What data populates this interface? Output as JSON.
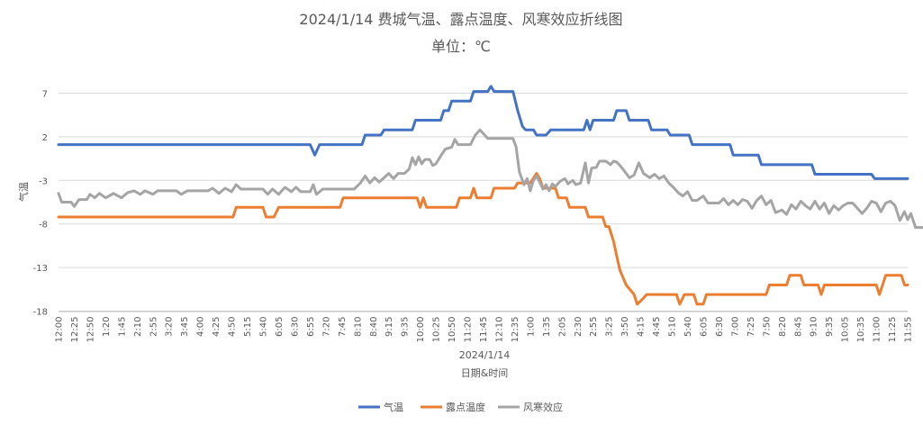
{
  "chart_data": {
    "type": "line",
    "title": "2024/1/14 费城气温、露点温度、风寒效应折线图",
    "subtitle": "单位：℃",
    "xlabel": "日期&时间",
    "ylabel": "气温",
    "date_label": "2024/1/14",
    "ylim": [
      -18,
      7
    ],
    "yticks": [
      -18,
      -13,
      -8,
      -3,
      2,
      7
    ],
    "x_ticks": [
      "12:00",
      "12:25",
      "12:50",
      "1:20",
      "1:45",
      "2:10",
      "2:55",
      "3:20",
      "3:45",
      "4:00",
      "4:25",
      "4:50",
      "5:15",
      "5:40",
      "6:05",
      "6:30",
      "6:55",
      "7:20",
      "7:45",
      "8:10",
      "8:40",
      "9:15",
      "9:35",
      "10:00",
      "10:25",
      "10:50",
      "11:20",
      "11:45",
      "12:10",
      "12:35",
      "1:00",
      "1:35",
      "2:05",
      "2:30",
      "2:55",
      "3:25",
      "3:50",
      "4:15",
      "4:45",
      "5:10",
      "5:40",
      "6:05",
      "6:30",
      "7:00",
      "7:25",
      "7:50",
      "8:20",
      "8:45",
      "9:10",
      "9:35",
      "10:05",
      "10:35",
      "11:00",
      "11:25",
      "11:55"
    ],
    "legend_position": "bottom",
    "grid": true,
    "series": [
      {
        "name": "气温",
        "color": "#4472C4",
        "points": [
          [
            0,
            1.1
          ],
          [
            16,
            1.1
          ],
          [
            16.3,
            -0.1
          ],
          [
            16.6,
            1.1
          ],
          [
            19.3,
            1.1
          ],
          [
            19.5,
            2.2
          ],
          [
            20.5,
            2.2
          ],
          [
            20.7,
            2.8
          ],
          [
            22.5,
            2.8
          ],
          [
            22.7,
            3.9
          ],
          [
            24.3,
            3.9
          ],
          [
            24.5,
            5
          ],
          [
            24.8,
            5
          ],
          [
            25,
            6.1
          ],
          [
            26.2,
            6.1
          ],
          [
            26.4,
            7.2
          ],
          [
            27.3,
            7.2
          ],
          [
            27.5,
            7.8
          ],
          [
            27.7,
            7.2
          ],
          [
            28.9,
            7.2
          ],
          [
            29.2,
            5
          ],
          [
            29.5,
            3.2
          ],
          [
            29.7,
            2.8
          ],
          [
            30.2,
            2.8
          ],
          [
            30.4,
            2.2
          ],
          [
            31,
            2.2
          ],
          [
            31.3,
            2.8
          ],
          [
            33.4,
            2.8
          ],
          [
            33.6,
            3.9
          ],
          [
            33.8,
            2.8
          ],
          [
            34,
            3.9
          ],
          [
            35.3,
            3.9
          ],
          [
            35.5,
            5
          ],
          [
            36.1,
            5
          ],
          [
            36.3,
            3.9
          ],
          [
            37.5,
            3.9
          ],
          [
            37.7,
            2.8
          ],
          [
            38.7,
            2.8
          ],
          [
            38.9,
            2.2
          ],
          [
            40.1,
            2.2
          ],
          [
            40.3,
            1.1
          ],
          [
            42.7,
            1.1
          ],
          [
            42.9,
            -0.1
          ],
          [
            44.5,
            -0.1
          ],
          [
            44.7,
            -1.2
          ],
          [
            47.9,
            -1.2
          ],
          [
            48.1,
            -2.3
          ],
          [
            51.7,
            -2.3
          ],
          [
            51.9,
            -2.8
          ],
          [
            54,
            -2.8
          ]
        ]
      },
      {
        "name": "露点温度",
        "color": "#ED7D31",
        "points": [
          [
            0,
            -7.2
          ],
          [
            11.1,
            -7.2
          ],
          [
            11.3,
            -6.1
          ],
          [
            13,
            -6.1
          ],
          [
            13.2,
            -7.2
          ],
          [
            13.7,
            -7.2
          ],
          [
            14,
            -6.1
          ],
          [
            17.9,
            -6.1
          ],
          [
            18.1,
            -5
          ],
          [
            22.8,
            -5
          ],
          [
            23,
            -6.1
          ],
          [
            23.2,
            -5
          ],
          [
            23.4,
            -6.1
          ],
          [
            25.3,
            -6.1
          ],
          [
            25.5,
            -5
          ],
          [
            26.2,
            -5
          ],
          [
            26.4,
            -3.9
          ],
          [
            26.6,
            -5
          ],
          [
            27.5,
            -5
          ],
          [
            27.7,
            -3.9
          ],
          [
            29,
            -3.9
          ],
          [
            29.2,
            -3.3
          ],
          [
            30,
            -3.3
          ],
          [
            30.4,
            -2.2
          ],
          [
            30.6,
            -2.8
          ],
          [
            30.8,
            -3.9
          ],
          [
            31.6,
            -3.9
          ],
          [
            31.8,
            -5
          ],
          [
            32.3,
            -5
          ],
          [
            32.5,
            -6.1
          ],
          [
            33.5,
            -6.1
          ],
          [
            33.7,
            -7.2
          ],
          [
            34.6,
            -7.2
          ],
          [
            34.8,
            -8.3
          ],
          [
            35,
            -8.3
          ],
          [
            35.3,
            -10
          ],
          [
            35.5,
            -11.7
          ],
          [
            35.7,
            -13.3
          ],
          [
            36.1,
            -15
          ],
          [
            36.6,
            -16.1
          ],
          [
            36.8,
            -17.2
          ],
          [
            37.1,
            -16.7
          ],
          [
            37.4,
            -16.1
          ],
          [
            39.3,
            -16.1
          ],
          [
            39.5,
            -17.2
          ],
          [
            39.8,
            -16.1
          ],
          [
            40.4,
            -16.1
          ],
          [
            40.6,
            -17.2
          ],
          [
            41,
            -17.2
          ],
          [
            41.2,
            -16.1
          ],
          [
            45,
            -16.1
          ],
          [
            45.2,
            -15
          ],
          [
            46.3,
            -15
          ],
          [
            46.5,
            -13.9
          ],
          [
            47.2,
            -13.9
          ],
          [
            47.4,
            -15
          ],
          [
            48.3,
            -15
          ],
          [
            48.5,
            -16.1
          ],
          [
            48.7,
            -15
          ],
          [
            52,
            -15
          ],
          [
            52.2,
            -16.1
          ],
          [
            52.4,
            -15
          ],
          [
            52.6,
            -13.9
          ],
          [
            53.6,
            -13.9
          ],
          [
            53.8,
            -15
          ],
          [
            54,
            -15
          ]
        ]
      },
      {
        "name": "风寒效应",
        "color": "#A5A5A5",
        "points": [
          [
            0,
            -4.5
          ],
          [
            0.2,
            -5.5
          ],
          [
            0.8,
            -5.5
          ],
          [
            1,
            -6
          ],
          [
            1.3,
            -5.2
          ],
          [
            1.8,
            -5.2
          ],
          [
            2,
            -4.6
          ],
          [
            2.3,
            -5
          ],
          [
            2.6,
            -4.5
          ],
          [
            3,
            -5
          ],
          [
            3.5,
            -4.5
          ],
          [
            4,
            -5
          ],
          [
            4.4,
            -4.4
          ],
          [
            4.8,
            -4.2
          ],
          [
            5.2,
            -4.6
          ],
          [
            5.5,
            -4.2
          ],
          [
            6,
            -4.6
          ],
          [
            6.3,
            -4.2
          ],
          [
            7.5,
            -4.2
          ],
          [
            7.8,
            -4.6
          ],
          [
            8.2,
            -4.2
          ],
          [
            9.5,
            -4.2
          ],
          [
            9.8,
            -3.9
          ],
          [
            10.2,
            -4.5
          ],
          [
            10.6,
            -3.9
          ],
          [
            11,
            -4.3
          ],
          [
            11.3,
            -3.5
          ],
          [
            11.6,
            -4
          ],
          [
            13,
            -4
          ],
          [
            13.3,
            -4.6
          ],
          [
            13.6,
            -4
          ],
          [
            14,
            -4.6
          ],
          [
            14.4,
            -3.8
          ],
          [
            14.8,
            -4.3
          ],
          [
            15.1,
            -3.8
          ],
          [
            15.4,
            -4.3
          ],
          [
            16,
            -4.3
          ],
          [
            16.2,
            -3.5
          ],
          [
            16.4,
            -4.6
          ],
          [
            16.8,
            -4
          ],
          [
            18.8,
            -4
          ],
          [
            19.2,
            -3.3
          ],
          [
            19.5,
            -2.5
          ],
          [
            19.8,
            -3.3
          ],
          [
            20.1,
            -2.7
          ],
          [
            20.4,
            -3.2
          ],
          [
            20.7,
            -2.7
          ],
          [
            21,
            -2.2
          ],
          [
            21.3,
            -2.8
          ],
          [
            21.6,
            -2.2
          ],
          [
            22,
            -2.2
          ],
          [
            22.3,
            -1.7
          ],
          [
            22.5,
            -0.4
          ],
          [
            22.7,
            -1.2
          ],
          [
            22.9,
            -0.3
          ],
          [
            23.1,
            -1.1
          ],
          [
            23.3,
            -0.6
          ],
          [
            23.6,
            -0.6
          ],
          [
            23.8,
            -1.3
          ],
          [
            24,
            -1.1
          ],
          [
            24.3,
            -0.2
          ],
          [
            24.6,
            0.6
          ],
          [
            25,
            0.8
          ],
          [
            25.2,
            1.7
          ],
          [
            25.4,
            1.1
          ],
          [
            26.2,
            1.1
          ],
          [
            26.5,
            2.2
          ],
          [
            26.8,
            2.8
          ],
          [
            27.1,
            2.2
          ],
          [
            27.3,
            1.8
          ],
          [
            27.5,
            1.8
          ],
          [
            27.8,
            1.8
          ],
          [
            28.4,
            1.8
          ],
          [
            28.6,
            1.8
          ],
          [
            28.9,
            1.8
          ],
          [
            29.1,
            0.8
          ],
          [
            29.3,
            -2
          ],
          [
            29.6,
            -3.5
          ],
          [
            29.8,
            -2.8
          ],
          [
            30,
            -4.2
          ],
          [
            30.2,
            -3
          ],
          [
            30.4,
            -2.5
          ],
          [
            30.6,
            -3.2
          ],
          [
            30.8,
            -4
          ],
          [
            31,
            -3.5
          ],
          [
            31.2,
            -4.2
          ],
          [
            31.4,
            -3.4
          ],
          [
            31.6,
            -3.7
          ],
          [
            31.9,
            -3.1
          ],
          [
            32.2,
            -2.8
          ],
          [
            32.4,
            -3.4
          ],
          [
            32.7,
            -3.0
          ],
          [
            32.9,
            -3.5
          ],
          [
            33.2,
            -3.3
          ],
          [
            33.5,
            -1.0
          ],
          [
            33.7,
            -3.3
          ],
          [
            33.9,
            -1.6
          ],
          [
            34.2,
            -1.5
          ],
          [
            34.4,
            -0.8
          ],
          [
            34.8,
            -0.8
          ],
          [
            35.1,
            -1.2
          ],
          [
            35.3,
            -0.8
          ],
          [
            35.5,
            -0.9
          ],
          [
            35.8,
            -1.5
          ],
          [
            36.1,
            -2.2
          ],
          [
            36.3,
            -2.7
          ],
          [
            36.6,
            -2.4
          ],
          [
            36.9,
            -1.0
          ],
          [
            37.2,
            -2.2
          ],
          [
            37.6,
            -2.7
          ],
          [
            37.9,
            -2.3
          ],
          [
            38.2,
            -2.8
          ],
          [
            38.5,
            -2.5
          ],
          [
            38.8,
            -3.3
          ],
          [
            39.1,
            -3.8
          ],
          [
            39.4,
            -4.4
          ],
          [
            39.7,
            -4.8
          ],
          [
            40,
            -4.3
          ],
          [
            40.3,
            -5.3
          ],
          [
            40.6,
            -5.3
          ],
          [
            41,
            -4.8
          ],
          [
            41.3,
            -5.6
          ],
          [
            42,
            -5.6
          ],
          [
            42.3,
            -5.1
          ],
          [
            42.6,
            -5.8
          ],
          [
            42.9,
            -5.3
          ],
          [
            43.2,
            -5.8
          ],
          [
            43.5,
            -5.2
          ],
          [
            43.8,
            -5.4
          ],
          [
            44.1,
            -6.2
          ],
          [
            44.4,
            -5.3
          ],
          [
            44.7,
            -4.8
          ],
          [
            45,
            -5.8
          ],
          [
            45.3,
            -5.3
          ],
          [
            45.6,
            -6.7
          ],
          [
            46,
            -6.4
          ],
          [
            46.3,
            -6.9
          ],
          [
            46.6,
            -5.8
          ],
          [
            46.9,
            -6.3
          ],
          [
            47.2,
            -5.4
          ],
          [
            47.5,
            -5.9
          ],
          [
            47.8,
            -6.3
          ],
          [
            48.1,
            -5.4
          ],
          [
            48.4,
            -6.3
          ],
          [
            48.7,
            -5.6
          ],
          [
            49,
            -6.8
          ],
          [
            49.3,
            -5.9
          ],
          [
            49.6,
            -6.4
          ],
          [
            49.9,
            -5.9
          ],
          [
            50.2,
            -5.6
          ],
          [
            50.5,
            -5.6
          ],
          [
            50.8,
            -6.2
          ],
          [
            51.1,
            -6.8
          ],
          [
            51.4,
            -6.2
          ],
          [
            51.7,
            -5.4
          ],
          [
            52,
            -5.6
          ],
          [
            52.3,
            -6.6
          ],
          [
            52.6,
            -5.6
          ],
          [
            52.9,
            -5.4
          ],
          [
            53.2,
            -5.9
          ],
          [
            53.5,
            -7.6
          ],
          [
            53.8,
            -6.6
          ],
          [
            54,
            -7.5
          ],
          [
            54.2,
            -6.8
          ],
          [
            54.5,
            -8.4
          ],
          [
            55,
            -8.4
          ],
          [
            55.4,
            -9
          ]
        ]
      }
    ]
  }
}
